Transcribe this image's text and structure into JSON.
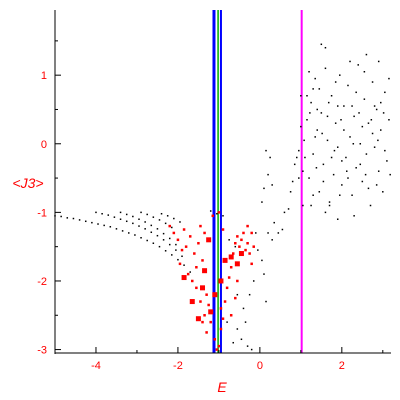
{
  "chart_data": {
    "type": "scatter",
    "title": "",
    "xlabel": "E",
    "ylabel": "<J3>",
    "xlim": [
      -5,
      3.2
    ],
    "ylim": [
      -3.05,
      1.95
    ],
    "grid": false,
    "xticks": [
      {
        "value": -4,
        "label": "-4"
      },
      {
        "value": -2,
        "label": "-2"
      },
      {
        "value": 0,
        "label": "0"
      },
      {
        "value": 2,
        "label": "2"
      }
    ],
    "xminor": [
      -3,
      -1,
      1,
      3
    ],
    "yticks": [
      {
        "value": 1,
        "label": "1"
      },
      {
        "value": 0,
        "label": "0"
      },
      {
        "value": -1,
        "label": "-1"
      },
      {
        "value": -2,
        "label": "-2"
      },
      {
        "value": -3,
        "label": "-3"
      }
    ],
    "vertical_lines": [
      {
        "x": -1.12,
        "color": "#0000ff",
        "width": 3
      },
      {
        "x": -1.02,
        "color": "#00aa00",
        "width": 1.5
      },
      {
        "x": -0.95,
        "color": "#0000ff",
        "width": 2
      },
      {
        "x": 1.02,
        "color": "#ff00ff",
        "width": 2
      }
    ],
    "series": [
      {
        "color": "#000000",
        "marker_size": 1.5,
        "points": [
          [
            -5.0,
            -1.05
          ],
          [
            -4.85,
            -1.06
          ],
          [
            -4.7,
            -1.08
          ],
          [
            -4.55,
            -1.09
          ],
          [
            -4.4,
            -1.11
          ],
          [
            -4.25,
            -1.13
          ],
          [
            -4.1,
            -1.15
          ],
          [
            -3.95,
            -1.17
          ],
          [
            -3.8,
            -1.19
          ],
          [
            -3.65,
            -1.21
          ],
          [
            -3.5,
            -1.24
          ],
          [
            -3.35,
            -1.27
          ],
          [
            -3.2,
            -1.3
          ],
          [
            -3.05,
            -1.33
          ],
          [
            -2.9,
            -1.37
          ],
          [
            -2.75,
            -1.41
          ],
          [
            -2.6,
            -1.45
          ],
          [
            -2.45,
            -1.5
          ],
          [
            -2.3,
            -1.56
          ],
          [
            -2.15,
            -1.62
          ],
          [
            -2.0,
            -1.69
          ],
          [
            -1.85,
            -1.77
          ],
          [
            -1.7,
            -1.87
          ],
          [
            -4.0,
            -1.0
          ],
          [
            -3.85,
            -1.02
          ],
          [
            -3.7,
            -1.04
          ],
          [
            -3.55,
            -1.07
          ],
          [
            -3.4,
            -1.1
          ],
          [
            -3.25,
            -1.13
          ],
          [
            -3.1,
            -1.16
          ],
          [
            -2.95,
            -1.2
          ],
          [
            -2.8,
            -1.24
          ],
          [
            -2.65,
            -1.29
          ],
          [
            -2.5,
            -1.34
          ],
          [
            -2.35,
            -1.4
          ],
          [
            -2.2,
            -1.47
          ],
          [
            -2.05,
            -1.55
          ],
          [
            -1.9,
            -1.64
          ],
          [
            -3.4,
            -1.0
          ],
          [
            -3.25,
            -1.03
          ],
          [
            -3.1,
            -1.06
          ],
          [
            -2.95,
            -1.1
          ],
          [
            -2.8,
            -1.14
          ],
          [
            -2.65,
            -1.19
          ],
          [
            -2.5,
            -1.24
          ],
          [
            -2.35,
            -1.31
          ],
          [
            -2.2,
            -1.38
          ],
          [
            -2.05,
            -1.47
          ],
          [
            -2.9,
            -1.0
          ],
          [
            -2.75,
            -1.03
          ],
          [
            -2.6,
            -1.07
          ],
          [
            -2.45,
            -1.11
          ],
          [
            -2.3,
            -1.16
          ],
          [
            -2.15,
            -1.22
          ],
          [
            -2.4,
            -1.02
          ],
          [
            -2.25,
            -1.05
          ],
          [
            -2.1,
            -1.09
          ],
          [
            -1.95,
            -1.14
          ],
          [
            -1.2,
            -0.98
          ],
          [
            -1.05,
            -1.02
          ],
          [
            -0.9,
            -1.05
          ],
          [
            -0.75,
            -1.4
          ],
          [
            -0.6,
            -1.5
          ],
          [
            -0.55,
            -2.2
          ],
          [
            -0.4,
            -2.4
          ],
          [
            -0.35,
            -2.6
          ],
          [
            -0.55,
            -2.7
          ],
          [
            -0.45,
            -2.85
          ],
          [
            -0.3,
            -2.95
          ],
          [
            -0.2,
            -3.0
          ],
          [
            -0.65,
            -2.9
          ],
          [
            -0.8,
            -2.6
          ],
          [
            -0.1,
            -1.3
          ],
          [
            -0.05,
            -1.55
          ],
          [
            0.05,
            -1.7
          ],
          [
            0.1,
            -1.9
          ],
          [
            -0.15,
            -2.0
          ],
          [
            -0.25,
            -2.2
          ],
          [
            0.15,
            -2.3
          ],
          [
            0.2,
            -1.3
          ],
          [
            0.3,
            -1.4
          ],
          [
            0.35,
            -1.15
          ],
          [
            0.45,
            -1.3
          ],
          [
            0.55,
            -1.25
          ],
          [
            0.6,
            -1.0
          ],
          [
            0.7,
            -0.95
          ],
          [
            0.75,
            -0.7
          ],
          [
            0.8,
            -0.55
          ],
          [
            0.85,
            -0.3
          ],
          [
            0.9,
            -0.2
          ],
          [
            0.95,
            -0.1
          ],
          [
            0.05,
            -0.85
          ],
          [
            0.1,
            -0.65
          ],
          [
            0.2,
            -0.45
          ],
          [
            0.25,
            -0.2
          ],
          [
            0.15,
            -0.1
          ],
          [
            0.3,
            -0.6
          ],
          [
            1.0,
            0.25
          ],
          [
            1.1,
            -0.2
          ],
          [
            1.15,
            0.35
          ],
          [
            1.2,
            -0.5
          ],
          [
            1.25,
            0.6
          ],
          [
            1.3,
            -0.15
          ],
          [
            1.35,
            0.95
          ],
          [
            1.4,
            0.2
          ],
          [
            1.45,
            -0.7
          ],
          [
            1.5,
            0.45
          ],
          [
            1.55,
            -0.3
          ],
          [
            1.6,
            1.1
          ],
          [
            1.65,
            0.05
          ],
          [
            1.7,
            -0.85
          ],
          [
            1.75,
            0.7
          ],
          [
            1.8,
            -0.45
          ],
          [
            1.85,
            0.3
          ],
          [
            1.9,
            -0.05
          ],
          [
            1.95,
            1.0
          ],
          [
            2.0,
            -0.6
          ],
          [
            2.05,
            0.55
          ],
          [
            2.1,
            -0.2
          ],
          [
            2.15,
            0.85
          ],
          [
            2.2,
            0.1
          ],
          [
            2.25,
            -0.75
          ],
          [
            2.3,
            0.4
          ],
          [
            2.35,
            -0.35
          ],
          [
            2.4,
            1.15
          ],
          [
            2.45,
            0.0
          ],
          [
            2.5,
            -0.55
          ],
          [
            2.55,
            0.65
          ],
          [
            2.6,
            -0.15
          ],
          [
            2.65,
            0.3
          ],
          [
            2.7,
            -0.9
          ],
          [
            2.75,
            0.9
          ],
          [
            2.8,
            -0.05
          ],
          [
            2.85,
            0.5
          ],
          [
            2.9,
            -0.4
          ],
          [
            2.95,
            0.2
          ],
          [
            3.0,
            -0.7
          ],
          [
            3.05,
            0.75
          ],
          [
            3.1,
            -0.25
          ],
          [
            3.15,
            0.35
          ],
          [
            1.05,
            -0.4
          ],
          [
            1.15,
            0.7
          ],
          [
            1.25,
            -0.9
          ],
          [
            1.35,
            0.1
          ],
          [
            1.45,
            0.8
          ],
          [
            1.55,
            -0.55
          ],
          [
            1.65,
            0.4
          ],
          [
            1.75,
            -0.2
          ],
          [
            1.85,
            0.9
          ],
          [
            1.95,
            -0.75
          ],
          [
            2.05,
            0.2
          ],
          [
            2.15,
            -0.5
          ],
          [
            2.25,
            0.55
          ],
          [
            2.35,
            0.75
          ],
          [
            2.45,
            -0.3
          ],
          [
            2.55,
            1.05
          ],
          [
            2.65,
            -0.65
          ],
          [
            2.75,
            0.15
          ],
          [
            2.85,
            -0.6
          ],
          [
            2.95,
            0.6
          ],
          [
            3.05,
            -0.1
          ],
          [
            3.15,
            0.95
          ],
          [
            1.08,
            0.05
          ],
          [
            1.22,
            0.45
          ],
          [
            1.38,
            -0.35
          ],
          [
            1.52,
            0.15
          ],
          [
            1.68,
            0.6
          ],
          [
            1.82,
            -0.1
          ],
          [
            1.98,
            0.35
          ],
          [
            2.12,
            -0.4
          ],
          [
            2.28,
            0.0
          ],
          [
            2.42,
            0.45
          ],
          [
            2.58,
            -0.45
          ],
          [
            2.72,
            0.35
          ],
          [
            2.88,
            0.05
          ],
          [
            3.02,
            0.45
          ],
          [
            3.18,
            -0.45
          ],
          [
            1.6,
            1.4
          ],
          [
            1.5,
            1.45
          ],
          [
            2.2,
            1.2
          ],
          [
            2.6,
            1.3
          ],
          [
            1.3,
            0.8
          ],
          [
            2.9,
            1.2
          ],
          [
            1.0,
            0.7
          ],
          [
            1.2,
            1.05
          ],
          [
            0.95,
            -0.5
          ],
          [
            1.05,
            -0.9
          ],
          [
            1.9,
            -1.1
          ],
          [
            2.3,
            -1.05
          ],
          [
            1.6,
            -1.0
          ],
          [
            1.3,
            -0.75
          ],
          [
            1.7,
            -0.9
          ],
          [
            2.0,
            -0.25
          ],
          [
            2.5,
            0.25
          ],
          [
            2.8,
            0.55
          ],
          [
            1.4,
            0.5
          ],
          [
            1.9,
            0.55
          ]
        ]
      },
      {
        "color": "#ff0000",
        "marker_size": 2.5,
        "points": [
          [
            -2.1,
            -1.3
          ],
          [
            -2.0,
            -1.4
          ],
          [
            -1.9,
            -1.55
          ],
          [
            -1.95,
            -1.75
          ],
          [
            -1.8,
            -1.5
          ],
          [
            -1.75,
            -1.9
          ],
          [
            -1.65,
            -2.0
          ],
          [
            -1.55,
            -2.1
          ],
          [
            -1.6,
            -1.6
          ],
          [
            -1.5,
            -1.45
          ],
          [
            -1.45,
            -1.2
          ],
          [
            -1.35,
            -1.3
          ],
          [
            -1.4,
            -1.7
          ],
          [
            -1.3,
            -2.2
          ],
          [
            -1.25,
            -2.35
          ],
          [
            -1.35,
            -2.5
          ],
          [
            -1.2,
            -2.6
          ],
          [
            -1.3,
            -2.75
          ],
          [
            -1.1,
            -2.85
          ],
          [
            -1.0,
            -2.95
          ],
          [
            -1.05,
            -3.0
          ],
          [
            -0.95,
            -2.7
          ],
          [
            -0.9,
            -2.55
          ],
          [
            -0.85,
            -2.3
          ],
          [
            -0.8,
            -2.1
          ],
          [
            -0.75,
            -1.95
          ],
          [
            -0.7,
            -1.8
          ],
          [
            -0.65,
            -1.6
          ],
          [
            -0.6,
            -1.45
          ],
          [
            -0.55,
            -1.35
          ],
          [
            -0.5,
            -1.5
          ],
          [
            -0.45,
            -1.4
          ],
          [
            -0.4,
            -1.3
          ],
          [
            -0.35,
            -1.55
          ],
          [
            -0.3,
            -1.45
          ],
          [
            -0.25,
            -1.6
          ],
          [
            -0.2,
            -1.75
          ],
          [
            -0.15,
            -1.5
          ],
          [
            -0.3,
            -1.2
          ],
          [
            -0.2,
            -1.3
          ],
          [
            -1.85,
            -1.25
          ],
          [
            -2.2,
            -1.2
          ],
          [
            -1.7,
            -1.35
          ],
          [
            -1.55,
            -1.8
          ],
          [
            -1.45,
            -2.3
          ],
          [
            -1.4,
            -2.6
          ],
          [
            -0.95,
            -2.4
          ],
          [
            -0.7,
            -2.5
          ],
          [
            -0.6,
            -2.25
          ],
          [
            -0.55,
            -2.0
          ],
          [
            -1.0,
            -1.0
          ],
          [
            -0.9,
            -1.25
          ],
          [
            -1.15,
            -1.05
          ]
        ]
      },
      {
        "color": "#ff0000",
        "marker_size": 5,
        "points": [
          [
            -1.85,
            -1.95
          ],
          [
            -1.65,
            -2.3
          ],
          [
            -1.5,
            -2.55
          ],
          [
            -1.4,
            -2.1
          ],
          [
            -1.2,
            -2.45
          ],
          [
            -1.1,
            -2.2
          ],
          [
            -0.95,
            -2.0
          ],
          [
            -0.85,
            -1.7
          ],
          [
            -0.7,
            -1.65
          ],
          [
            -0.55,
            -1.75
          ],
          [
            -0.45,
            -1.6
          ],
          [
            -1.35,
            -1.85
          ],
          [
            -1.25,
            -1.4
          ]
        ]
      }
    ]
  }
}
